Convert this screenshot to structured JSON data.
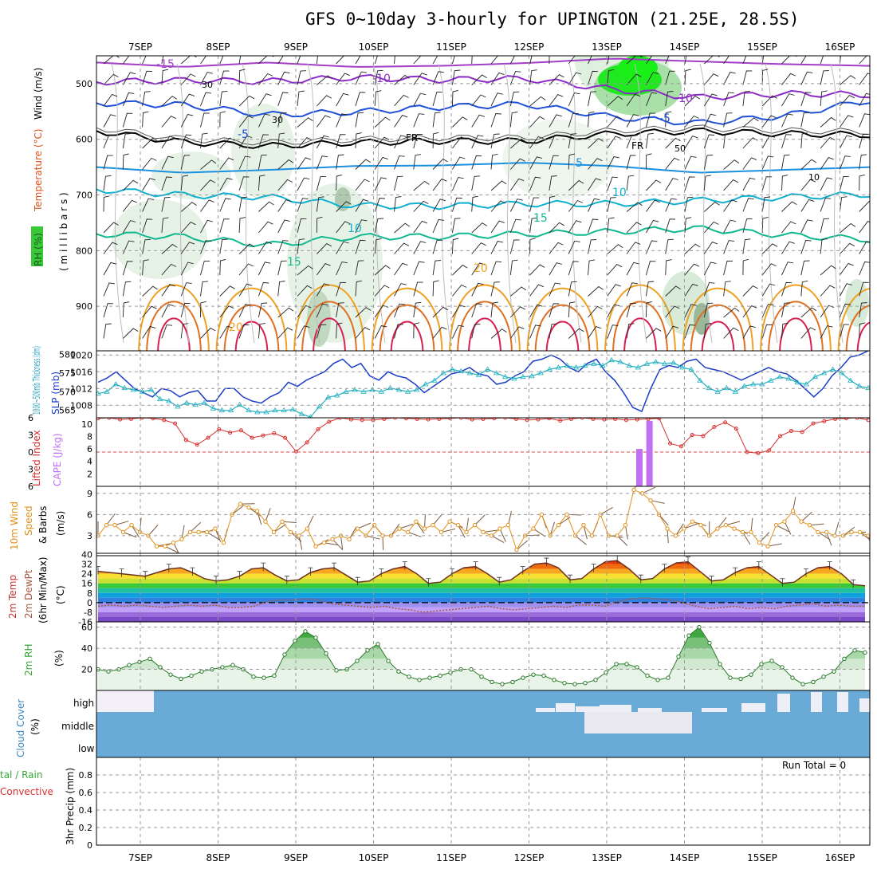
{
  "title": "GFS 0~10day 3-hourly for UPINGTON (21.25E, 28.5S)",
  "date_labels": [
    "7SEP",
    "8SEP",
    "9SEP",
    "10SEP",
    "11SEP",
    "12SEP",
    "13SEP",
    "14SEP",
    "15SEP",
    "16SEP"
  ],
  "colors": {
    "temp_15": "#a23ec8",
    "temp_10": "#8c2cc8",
    "temp_5": "#2050d8",
    "temp_0": "#000000",
    "temp_p5": "#1a90e0",
    "temp_p10": "#10b0d0",
    "temp_p15": "#10b890",
    "temp_p20": "#f0a020",
    "temp_p25": "#e07020",
    "temp_p30": "#d82050",
    "rh": "#38c838",
    "slp": "#1a3cc8",
    "thickness": "#20b0c0",
    "lifted": "#d83030",
    "cape": "#c070f0",
    "wind": "#e0901a",
    "cloud": "#6aaad6",
    "dewpt": "#a85a40"
  },
  "panels": {
    "upper": {
      "ylabel_rh": "RH (%)",
      "ylabel_temp": "Temperature (°C)",
      "ylabel_wind": "Wind (m/s)",
      "ylabel_mb": "( m i l l i b a r s )",
      "contour_labels": {
        "t_m15": "-15",
        "t_m10a": "-10",
        "t_m10b": "-10",
        "t_m5a": "-5",
        "t_m5b": "-5",
        "fr1": "FR",
        "fr2": "FR",
        "t_p5": "5",
        "t_p10a": "10",
        "t_p10b": "10",
        "t_p15a": "15",
        "t_p15b": "15",
        "t_p20a": "20",
        "t_p20b": "20",
        "rh_30a": "30",
        "rh_30b": "30",
        "rh_50": "50",
        "rh_10": "10"
      }
    },
    "slp": {
      "ylabel_thick": "1000~500mb Thickness (dm)",
      "ylabel_slp": "SLP (mb)"
    },
    "cape": {
      "ylabel_li": "Lifted Index",
      "ylabel_cape": "CAPE (J/kg)"
    },
    "wind10": {
      "ylabel_a": "10m Wind",
      "ylabel_b": "Speed",
      "ylabel_c": "& Barbs",
      "ylabel_unit": "(m/s)"
    },
    "temp2m": {
      "ylabel_a": "2m Temp",
      "ylabel_b": "2m DewPt",
      "ylabel_c": "(6hr Min/Max)",
      "ylabel_unit": "(°C)"
    },
    "rh2m": {
      "ylabel_a": "2m RH",
      "ylabel_unit": "(%)"
    },
    "cloud": {
      "ylabel_a": "Cloud Cover",
      "ylabel_unit": "(%)",
      "levels": [
        "high",
        "middle",
        "low"
      ]
    },
    "precip": {
      "ylabel_a": "tal / Rain",
      "ylabel_b": "Convective",
      "ylabel_c": "3hr Precip (mm)",
      "run_total": "Run Total = 0"
    }
  },
  "chart_data": [
    {
      "type": "heatmap",
      "name": "upper-air cross section",
      "x_range": [
        "7SEP",
        "16SEP"
      ],
      "ylim": [
        980,
        450
      ],
      "yticks": [
        500,
        600,
        700,
        800,
        900
      ],
      "temperature_contours_c": [
        -15,
        -10,
        -5,
        0,
        5,
        10,
        15,
        20,
        25,
        30
      ],
      "freezing_level_mb": [
        585,
        605,
        612,
        606,
        603,
        603,
        590,
        585,
        590,
        592
      ],
      "isotherm_m10_mb": [
        497,
        494,
        496,
        489,
        493,
        491,
        510,
        525,
        518,
        520
      ],
      "isotherm_m5_mb": [
        535,
        538,
        556,
        551,
        542,
        537,
        560,
        571,
        558,
        530
      ],
      "isotherm_p10_mb": [
        690,
        700,
        704,
        719,
        720,
        716,
        716,
        710,
        704,
        699
      ],
      "isotherm_p15_mb": [
        770,
        775,
        790,
        775,
        775,
        770,
        766,
        760,
        772,
        780
      ],
      "rh_shading_levels": [
        30,
        50,
        70,
        90
      ]
    },
    {
      "type": "line",
      "name": "SLP and thickness",
      "yticks_slp": [
        1008,
        1012,
        1016,
        1020
      ],
      "yticks_thickness": [
        565,
        570,
        575,
        580
      ],
      "ylim_slp": [
        1005,
        1021
      ],
      "ylim_thickness": [
        563,
        581
      ],
      "slp_mb": [
        1013.5,
        1014.5,
        1016,
        1014,
        1012,
        1011,
        1010,
        1012,
        1011.5,
        1010,
        1011,
        1011.5,
        1009,
        1009,
        1012,
        1012,
        1010,
        1009,
        1008.5,
        1010,
        1011,
        1013.5,
        1012.5,
        1014,
        1015,
        1016,
        1018,
        1019,
        1017,
        1018,
        1015,
        1014,
        1016,
        1015,
        1014.5,
        1013,
        1011,
        1012.5,
        1014,
        1015.5,
        1016,
        1017,
        1015.5,
        1015,
        1013,
        1013.5,
        1015,
        1016,
        1018.5,
        1019,
        1020,
        1019,
        1017,
        1016,
        1018,
        1019,
        1016,
        1014,
        1011,
        1007.5,
        1006.5,
        1012,
        1016.5,
        1017.5,
        1017,
        1018.5,
        1019,
        1017,
        1016.5,
        1016,
        1015,
        1014,
        1015,
        1016,
        1017,
        1016,
        1015.5,
        1014,
        1012,
        1010,
        1012,
        1015,
        1017,
        1019.5,
        1020,
        1021
      ],
      "thickness_dm": [
        569.5,
        570,
        572,
        571,
        570.5,
        570,
        570.5,
        568,
        567.5,
        566,
        567,
        566.5,
        567,
        565.5,
        565,
        565,
        566.5,
        565,
        564.5,
        564.5,
        565,
        565,
        565.2,
        564,
        563.2,
        566,
        568.5,
        569,
        570,
        570.5,
        570,
        570.5,
        570,
        571,
        570.5,
        570,
        570.5,
        572,
        573,
        575,
        576,
        575.5,
        575,
        574.5,
        576,
        575,
        574,
        573.5,
        574,
        574.2,
        575,
        576,
        576.5,
        577,
        576.5,
        577,
        577.5,
        577,
        578.5,
        578,
        577,
        576.5,
        577.5,
        578,
        577.5,
        577.8,
        576.5,
        576,
        573,
        571,
        570,
        571,
        570,
        571.5,
        572,
        572,
        573,
        574,
        573.5,
        572.5,
        572,
        574,
        575,
        576,
        575,
        573,
        571.5,
        571
      ]
    },
    {
      "type": "bar",
      "name": "CAPE and lifted index",
      "yticks_cape": [
        2,
        4,
        6,
        8,
        10
      ],
      "yticks_li": [
        -6,
        -3,
        0,
        3,
        6
      ],
      "ylim_cape": [
        0,
        11
      ],
      "ylim_li": [
        6,
        -6
      ],
      "cape_jkg": [
        {
          "x": 6.42,
          "value": 6
        },
        {
          "x": 6.55,
          "value": 10.5
        }
      ],
      "lifted_index": [
        5.9,
        6,
        5.7,
        5.8,
        6,
        5.9,
        5.6,
        5,
        2.1,
        1.3,
        2.5,
        4,
        3.4,
        3.8,
        2.5,
        2.9,
        3.3,
        2.5,
        0.1,
        1.7,
        4,
        5.3,
        6,
        5.7,
        5.6,
        5.6,
        5.8,
        6,
        5.9,
        5.8,
        5.7,
        5.8,
        5.9,
        6,
        5.7,
        5.8,
        5.9,
        6,
        5.8,
        5.6,
        5.7,
        5.9,
        5.5,
        5.8,
        6,
        5.8,
        5.7,
        5.8,
        5.6,
        5.7,
        5.8,
        5.9,
        1.5,
        1,
        3,
        2.8,
        4.4,
        5.2,
        4.1,
        0,
        -0.2,
        0.3,
        2.8,
        3.7,
        3.5,
        5,
        5.4,
        5.8,
        5.9,
        6,
        5.6
      ]
    },
    {
      "type": "line",
      "name": "10m wind speed",
      "yticks": [
        3,
        6,
        9
      ],
      "ylim": [
        0.5,
        10
      ],
      "speed_ms": [
        3,
        4.5,
        4.5,
        3.5,
        4.5,
        3.5,
        3,
        1.5,
        1.5,
        2,
        2.5,
        3.5,
        3.5,
        3.5,
        4,
        2,
        6,
        7.5,
        7,
        6.5,
        5,
        3.5,
        5,
        3.5,
        3,
        4,
        1.5,
        2,
        2.5,
        3,
        2.5,
        4,
        3,
        4.5,
        3,
        3,
        4,
        3.5,
        5,
        4,
        4.5,
        3.5,
        5,
        4.5,
        3.5,
        4.5,
        3.5,
        3,
        4,
        4.5,
        1,
        3,
        4,
        6,
        3,
        4.5,
        6,
        3,
        4.5,
        3,
        6,
        3,
        3,
        4.5,
        9.5,
        9,
        8,
        6,
        4,
        3,
        4,
        5,
        4.5,
        3,
        4,
        4.5,
        4,
        3.5,
        3.5,
        2,
        1.5,
        4.5,
        5,
        6.5,
        5,
        4.5,
        3.5,
        3.5,
        3,
        3,
        3.5,
        3.5,
        3
      ]
    },
    {
      "type": "area",
      "name": "2m temperature and dewpoint",
      "yticks": [
        -16,
        -8,
        0,
        8,
        16,
        24,
        32,
        40
      ],
      "ylim": [
        -16,
        41
      ],
      "temp_c": [
        26,
        25,
        24,
        23,
        22,
        25,
        28,
        29,
        25,
        20,
        18,
        19,
        22,
        28,
        29,
        23,
        18,
        19,
        25,
        28,
        29,
        23,
        17,
        18,
        24,
        28,
        30,
        24,
        16,
        17,
        24,
        29,
        30,
        24,
        17,
        19,
        26,
        32,
        33,
        29,
        19,
        20,
        28,
        34,
        35,
        28,
        19,
        20,
        28,
        33,
        34,
        26,
        18,
        19,
        25,
        29,
        30,
        23,
        16,
        17,
        24,
        29,
        30,
        24,
        15,
        14
      ],
      "dewpt_c": [
        -3,
        -2,
        -3,
        -2,
        -3,
        -4,
        -3,
        -2,
        -3,
        -2,
        -4,
        -4,
        -3,
        1,
        2,
        2,
        3,
        2,
        -1,
        -2,
        -3,
        -4,
        -3,
        -5,
        -6,
        -8,
        -7,
        -6,
        -5,
        -4,
        -3,
        -5,
        -6,
        -5,
        -4,
        -3,
        -4,
        -2,
        -2,
        -3,
        1,
        3,
        4,
        3,
        2,
        0,
        -3,
        -5,
        -4,
        -3,
        -5,
        -4,
        -5,
        -3,
        -2,
        -1,
        -3,
        -2,
        -3,
        -3
      ]
    },
    {
      "type": "area",
      "name": "2m relative humidity",
      "yticks": [
        20,
        40,
        60
      ],
      "ylim": [
        0,
        65
      ],
      "rh_pct": [
        20,
        18,
        20,
        24,
        27,
        30,
        22,
        15,
        11,
        14,
        18,
        20,
        22,
        24,
        20,
        13,
        12,
        14,
        34,
        47,
        56,
        50,
        35,
        19,
        20,
        28,
        38,
        44,
        28,
        18,
        13,
        10,
        12,
        14,
        17,
        20,
        20,
        13,
        8,
        6,
        8,
        12,
        15,
        14,
        10,
        7,
        6,
        7,
        10,
        17,
        25,
        25,
        22,
        14,
        10,
        12,
        32,
        52,
        60,
        45,
        25,
        12,
        11,
        15,
        25,
        28,
        22,
        12,
        6,
        8,
        13,
        18,
        30,
        38,
        36
      ]
    },
    {
      "type": "heatmap",
      "name": "cloud cover",
      "levels": [
        "high",
        "middle",
        "low"
      ],
      "high_clear_until": "7SEP",
      "middle_clear_window": [
        "13SEP",
        "14SEP"
      ]
    },
    {
      "type": "bar",
      "name": "3hr precipitation",
      "yticks": [
        0,
        0.2,
        0.4,
        0.6,
        0.8
      ],
      "ylim": [
        0,
        1
      ],
      "values_mm": []
    }
  ]
}
